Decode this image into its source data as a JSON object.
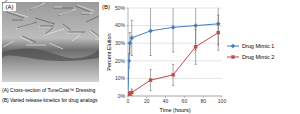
{
  "panel_a": {
    "label": "(A)"
  },
  "captions": [
    "(A) Cross-section of TuneCoat™ Dressing",
    "(B) Varied release kinetics for drug analogs"
  ],
  "chart_data": {
    "type": "line",
    "title": "(B)",
    "x_label": "Time (hours)",
    "y_label": "Percent Elution",
    "x": [
      0,
      1,
      2,
      4,
      24,
      48,
      72,
      96
    ],
    "series": [
      {
        "name": "Drug Mimic 1",
        "color": "#4a7ebb",
        "marker": "diamond",
        "values": [
          0,
          20,
          30,
          33,
          37,
          39,
          40,
          41
        ],
        "errors": [
          0,
          4,
          6,
          10,
          14,
          14,
          14,
          12
        ]
      },
      {
        "name": "Drug Mimic 2",
        "color": "#be4b48",
        "marker": "square",
        "values": [
          0,
          1,
          1.5,
          2,
          9,
          12,
          28,
          36
        ],
        "errors": [
          0,
          1,
          1,
          2,
          6,
          6,
          10,
          10
        ]
      }
    ],
    "xlim": [
      0,
      100
    ],
    "xticks": [
      0,
      20,
      40,
      60,
      80,
      100
    ],
    "ylim": [
      0,
      50
    ],
    "yticks": [
      {
        "value": 0,
        "label": "0%"
      },
      {
        "value": 10,
        "label": "10%"
      },
      {
        "value": 20,
        "label": "20%"
      },
      {
        "value": 30,
        "label": "30%"
      },
      {
        "value": 40,
        "label": "40%"
      },
      {
        "value": 50,
        "label": "50%"
      }
    ],
    "grid": true,
    "legend": "right"
  }
}
